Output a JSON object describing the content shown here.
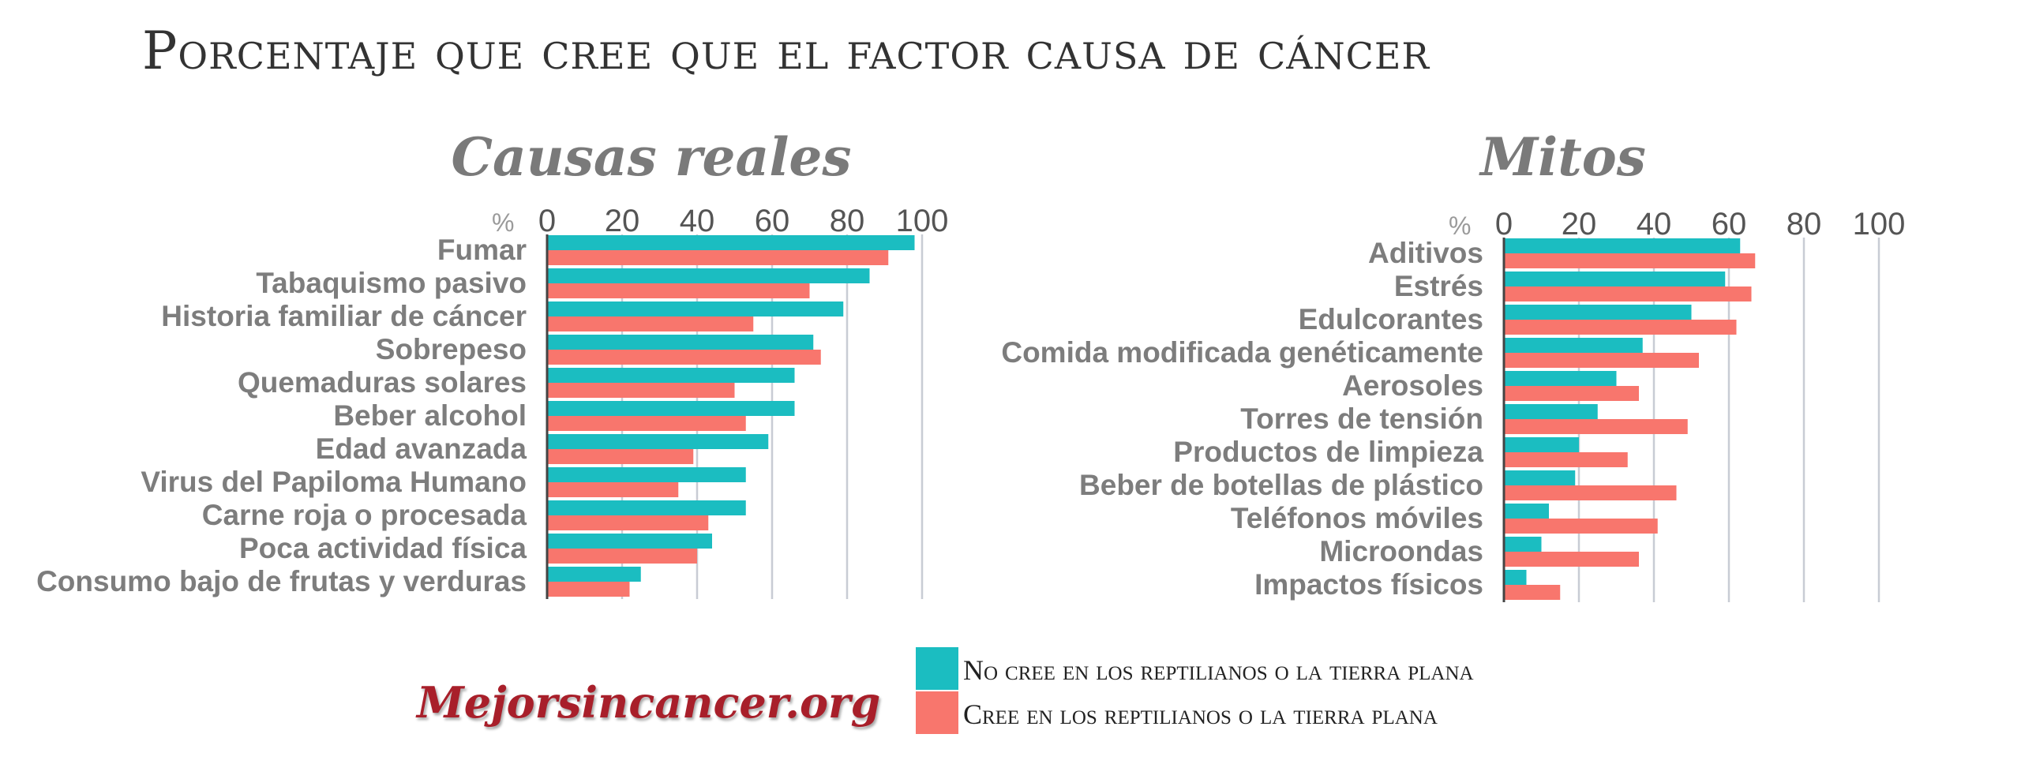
{
  "page": {
    "title": "Porcentaje que cree que el factor causa de cáncer",
    "brand": "Mejorsincancer.org"
  },
  "legend": {
    "items": [
      {
        "label": "No cree en los reptilianos o la tierra plana",
        "color": "#1bbdc1"
      },
      {
        "label": "Cree en los reptilianos o la tierra plana",
        "color": "#f8766d"
      }
    ]
  },
  "chart_data": [
    {
      "type": "bar",
      "orientation": "horizontal",
      "title": "Causas reales",
      "axis_unit": "%",
      "xlim": [
        0,
        100
      ],
      "ticks": [
        0,
        20,
        40,
        60,
        80,
        100
      ],
      "grid": true,
      "categories": [
        "Fumar",
        "Tabaquismo pasivo",
        "Historia familiar de cáncer",
        "Sobrepeso",
        "Quemaduras solares",
        "Beber alcohol",
        "Edad avanzada",
        "Virus del Papiloma Humano",
        "Carne roja o procesada",
        "Poca actividad física",
        "Consumo bajo de frutas y verduras"
      ],
      "series": [
        {
          "name": "No cree en los reptilianos o la tierra plana",
          "color": "#1bbdc1",
          "values": [
            98,
            86,
            79,
            71,
            66,
            66,
            59,
            53,
            53,
            44,
            25
          ]
        },
        {
          "name": "Cree en los reptilianos o la tierra plana",
          "color": "#f8766d",
          "values": [
            91,
            70,
            55,
            73,
            50,
            53,
            39,
            35,
            43,
            40,
            22
          ]
        }
      ]
    },
    {
      "type": "bar",
      "orientation": "horizontal",
      "title": "Mitos",
      "axis_unit": "%",
      "xlim": [
        0,
        100
      ],
      "ticks": [
        0,
        20,
        40,
        60,
        80,
        100
      ],
      "grid": true,
      "categories": [
        "Aditivos",
        "Estrés",
        "Edulcorantes",
        "Comida modificada genéticamente",
        "Aerosoles",
        "Torres de tensión",
        "Productos de limpieza",
        "Beber de botellas de plástico",
        "Teléfonos móviles",
        "Microondas",
        "Impactos físicos"
      ],
      "series": [
        {
          "name": "No cree en los reptilianos o la tierra plana",
          "color": "#1bbdc1",
          "values": [
            63,
            59,
            50,
            37,
            30,
            25,
            20,
            19,
            12,
            10,
            6
          ]
        },
        {
          "name": "Cree en los reptilianos o la tierra plana",
          "color": "#f8766d",
          "values": [
            67,
            66,
            62,
            52,
            36,
            49,
            33,
            46,
            41,
            36,
            15
          ]
        }
      ]
    }
  ]
}
